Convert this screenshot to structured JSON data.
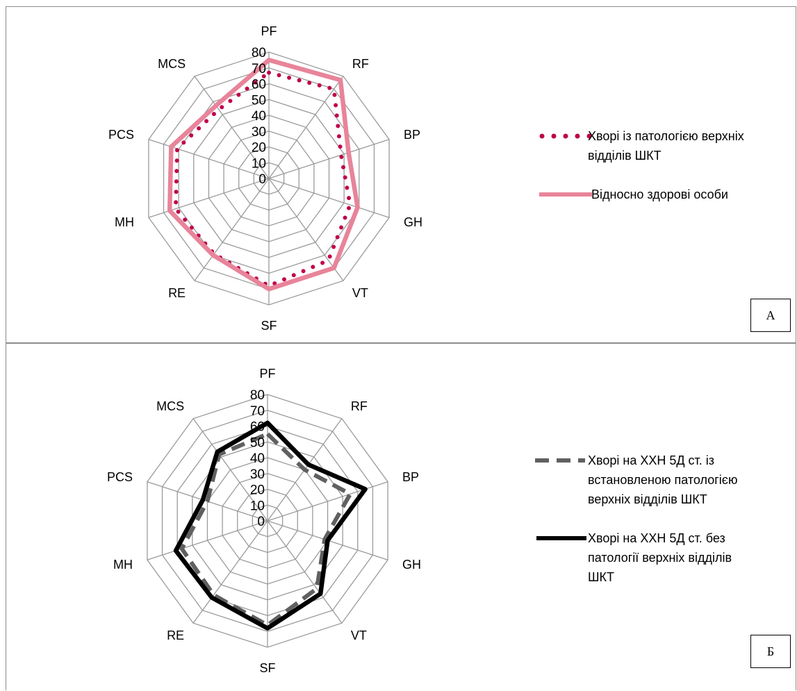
{
  "chart_data": [
    {
      "type": "radar",
      "axes": [
        "PF",
        "RF",
        "BP",
        "GH",
        "VT",
        "SF",
        "RE",
        "MH",
        "PCS",
        "MCS"
      ],
      "rlim": [
        0,
        80
      ],
      "ticks": [
        "0",
        "10",
        "20",
        "30",
        "40",
        "50",
        "60",
        "70",
        "80"
      ],
      "grid": true,
      "legend": "right",
      "panel_label": "А",
      "series": [
        {
          "name": "Хворі із патологією верхніх відділів ШКТ",
          "values": [
            67,
            70,
            48,
            54,
            64,
            68,
            59,
            62,
            61,
            54
          ],
          "color": "#c0004a",
          "style": "dotted"
        },
        {
          "name": "Відносно здорові особи",
          "values": [
            75,
            77,
            53,
            59,
            70,
            70,
            60,
            66,
            65,
            57
          ],
          "color": "#e8849a",
          "style": "solid"
        }
      ]
    },
    {
      "type": "radar",
      "axes": [
        "PF",
        "RF",
        "BP",
        "GH",
        "VT",
        "SF",
        "RE",
        "MH",
        "PCS",
        "MCS"
      ],
      "rlim": [
        0,
        80
      ],
      "ticks": [
        "0",
        "10",
        "20",
        "30",
        "40",
        "50",
        "60",
        "70",
        "80"
      ],
      "grid": true,
      "legend": "right",
      "panel_label": "Б",
      "series": [
        {
          "name": "Хворі на ХХН 5Д ст. із встановленою патологією верхніх відділів ШКТ",
          "values": [
            55,
            40,
            55,
            38,
            53,
            66,
            58,
            57,
            40,
            52
          ],
          "color": "#606060",
          "style": "dashed"
        },
        {
          "name": "Хворі на ХХН 5Д ст. без патології верхніх відділів ШКТ",
          "values": [
            62,
            44,
            65,
            40,
            57,
            68,
            60,
            61,
            43,
            54
          ],
          "color": "#000000",
          "style": "solid"
        }
      ]
    }
  ]
}
